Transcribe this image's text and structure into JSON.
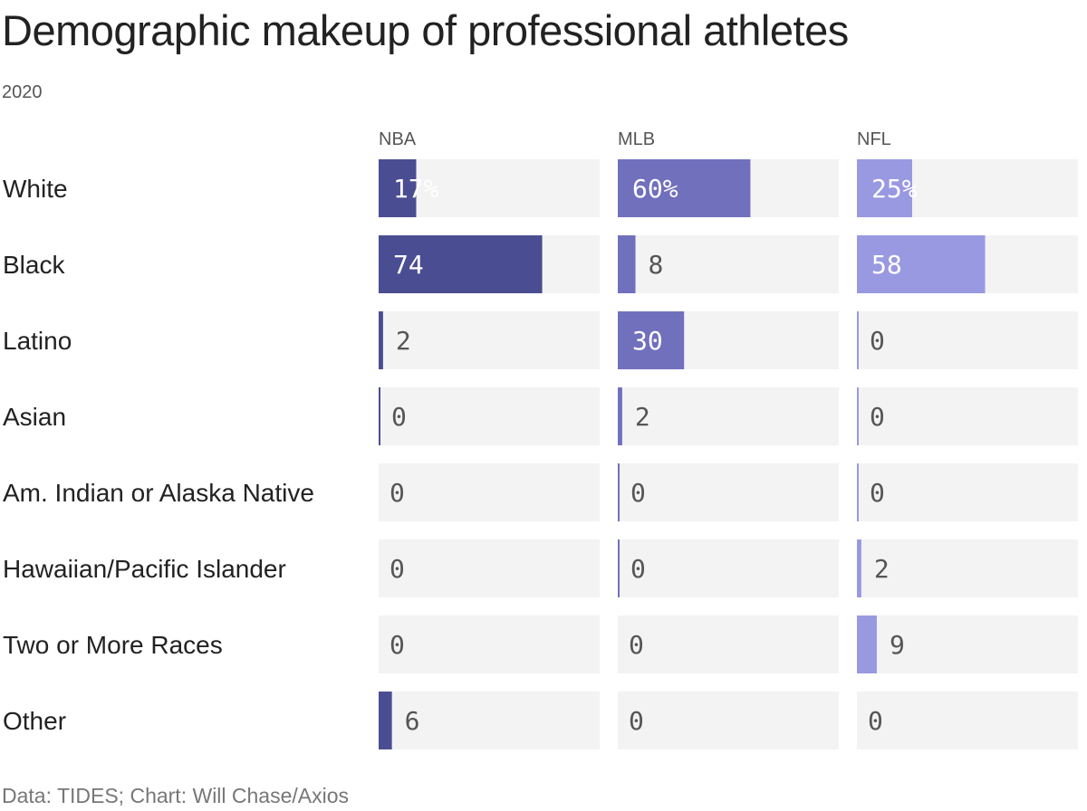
{
  "title": "Demographic makeup of professional athletes",
  "subtitle": "2020",
  "footer": "Data: TIDES; Chart: Will Chase/Axios",
  "colors": {
    "track": "#f3f3f3",
    "NBA": "#4b4d92",
    "MLB": "#7170bd",
    "NFL": "#9999e2",
    "text_dark": "#222222",
    "text_value": "#555555",
    "text_inside": "#ffffff"
  },
  "chart_data": {
    "type": "bar",
    "orientation": "horizontal",
    "xlim": [
      0,
      100
    ],
    "unit": "%",
    "categories": [
      "White",
      "Black",
      "Latino",
      "Asian",
      "Am. Indian or Alaska Native",
      "Hawaiian/Pacific Islander",
      "Two or More Races",
      "Other"
    ],
    "series": [
      {
        "name": "NBA",
        "values": [
          17,
          74,
          2,
          0,
          0,
          0,
          0,
          6
        ]
      },
      {
        "name": "MLB",
        "values": [
          60,
          8,
          30,
          2,
          0,
          0,
          0,
          0
        ]
      },
      {
        "name": "NFL",
        "values": [
          25,
          58,
          0,
          0,
          0,
          2,
          9,
          0
        ]
      }
    ],
    "value_labels": [
      [
        "17%",
        "74",
        "2",
        "0",
        "0",
        "0",
        "0",
        "6"
      ],
      [
        "60%",
        "8",
        "30",
        "2",
        "0",
        "0",
        "0",
        "0"
      ],
      [
        "25%",
        "58",
        "0",
        "0",
        "0",
        "2",
        "9",
        "0"
      ]
    ]
  }
}
